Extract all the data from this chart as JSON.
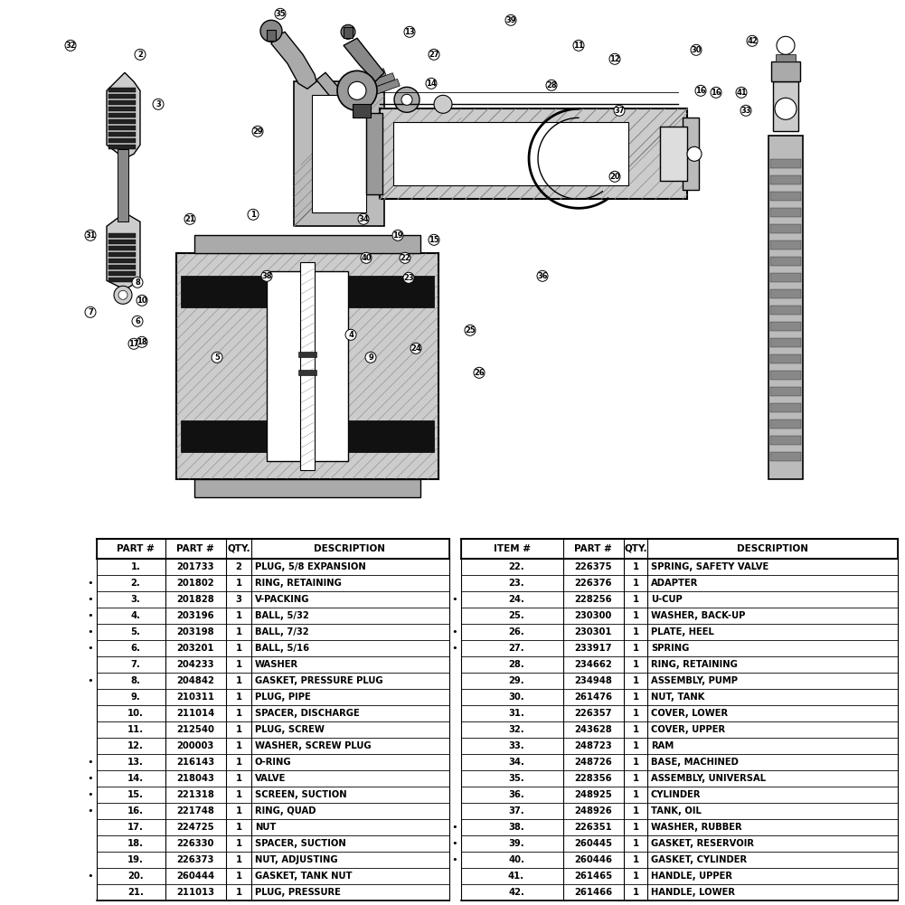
{
  "bg_color": "#ffffff",
  "table_left": {
    "headers": [
      "PART #",
      "PART #",
      "QTY.",
      "DESCRIPTION"
    ],
    "rows": [
      {
        "item": "1.",
        "part": "201733",
        "qty": "2",
        "desc": "PLUG, 5/8 EXPANSION",
        "bullet": false
      },
      {
        "item": "2.",
        "part": "201802",
        "qty": "1",
        "desc": "RING, RETAINING",
        "bullet": true
      },
      {
        "item": "3.",
        "part": "201828",
        "qty": "3",
        "desc": "V-PACKING",
        "bullet": true
      },
      {
        "item": "4.",
        "part": "203196",
        "qty": "1",
        "desc": "BALL, 5/32",
        "bullet": true
      },
      {
        "item": "5.",
        "part": "203198",
        "qty": "1",
        "desc": "BALL, 7/32",
        "bullet": true
      },
      {
        "item": "6.",
        "part": "203201",
        "qty": "1",
        "desc": "BALL, 5/16",
        "bullet": true
      },
      {
        "item": "7.",
        "part": "204233",
        "qty": "1",
        "desc": "WASHER",
        "bullet": false
      },
      {
        "item": "8.",
        "part": "204842",
        "qty": "1",
        "desc": "GASKET, PRESSURE PLUG",
        "bullet": true
      },
      {
        "item": "9.",
        "part": "210311",
        "qty": "1",
        "desc": "PLUG, PIPE",
        "bullet": false
      },
      {
        "item": "10.",
        "part": "211014",
        "qty": "1",
        "desc": "SPACER, DISCHARGE",
        "bullet": false
      },
      {
        "item": "11.",
        "part": "212540",
        "qty": "1",
        "desc": "PLUG, SCREW",
        "bullet": false
      },
      {
        "item": "12.",
        "part": "200003",
        "qty": "1",
        "desc": "WASHER, SCREW PLUG",
        "bullet": false
      },
      {
        "item": "13.",
        "part": "216143",
        "qty": "1",
        "desc": "O-RING",
        "bullet": true
      },
      {
        "item": "14.",
        "part": "218043",
        "qty": "1",
        "desc": "VALVE",
        "bullet": true
      },
      {
        "item": "15.",
        "part": "221318",
        "qty": "1",
        "desc": "SCREEN, SUCTION",
        "bullet": true
      },
      {
        "item": "16.",
        "part": "221748",
        "qty": "1",
        "desc": "RING, QUAD",
        "bullet": true
      },
      {
        "item": "17.",
        "part": "224725",
        "qty": "1",
        "desc": "NUT",
        "bullet": false
      },
      {
        "item": "18.",
        "part": "226330",
        "qty": "1",
        "desc": "SPACER, SUCTION",
        "bullet": false
      },
      {
        "item": "19.",
        "part": "226373",
        "qty": "1",
        "desc": "NUT, ADJUSTING",
        "bullet": false
      },
      {
        "item": "20.",
        "part": "260444",
        "qty": "1",
        "desc": "GASKET, TANK NUT",
        "bullet": true
      },
      {
        "item": "21.",
        "part": "211013",
        "qty": "1",
        "desc": "PLUG, PRESSURE",
        "bullet": false
      }
    ]
  },
  "table_right": {
    "headers": [
      "ITEM #",
      "PART #",
      "QTY.",
      "DESCRIPTION"
    ],
    "rows": [
      {
        "item": "22.",
        "part": "226375",
        "qty": "1",
        "desc": "SPRING, SAFETY VALVE",
        "bullet": false
      },
      {
        "item": "23.",
        "part": "226376",
        "qty": "1",
        "desc": "ADAPTER",
        "bullet": false
      },
      {
        "item": "24.",
        "part": "228256",
        "qty": "1",
        "desc": "U-CUP",
        "bullet": true
      },
      {
        "item": "25.",
        "part": "230300",
        "qty": "1",
        "desc": "WASHER, BACK-UP",
        "bullet": false
      },
      {
        "item": "26.",
        "part": "230301",
        "qty": "1",
        "desc": "PLATE, HEEL",
        "bullet": true
      },
      {
        "item": "27.",
        "part": "233917",
        "qty": "1",
        "desc": "SPRING",
        "bullet": true
      },
      {
        "item": "28.",
        "part": "234662",
        "qty": "1",
        "desc": "RING, RETAINING",
        "bullet": false
      },
      {
        "item": "29.",
        "part": "234948",
        "qty": "1",
        "desc": "ASSEMBLY, PUMP",
        "bullet": false
      },
      {
        "item": "30.",
        "part": "261476",
        "qty": "1",
        "desc": "NUT, TANK",
        "bullet": false
      },
      {
        "item": "31.",
        "part": "226357",
        "qty": "1",
        "desc": "COVER, LOWER",
        "bullet": false
      },
      {
        "item": "32.",
        "part": "243628",
        "qty": "1",
        "desc": "COVER, UPPER",
        "bullet": false
      },
      {
        "item": "33.",
        "part": "248723",
        "qty": "1",
        "desc": "RAM",
        "bullet": false
      },
      {
        "item": "34.",
        "part": "248726",
        "qty": "1",
        "desc": "BASE, MACHINED",
        "bullet": false
      },
      {
        "item": "35.",
        "part": "228356",
        "qty": "1",
        "desc": "ASSEMBLY, UNIVERSAL",
        "bullet": false
      },
      {
        "item": "36.",
        "part": "248925",
        "qty": "1",
        "desc": "CYLINDER",
        "bullet": false
      },
      {
        "item": "37.",
        "part": "248926",
        "qty": "1",
        "desc": "TANK, OIL",
        "bullet": false
      },
      {
        "item": "38.",
        "part": "226351",
        "qty": "1",
        "desc": "WASHER, RUBBER",
        "bullet": true
      },
      {
        "item": "39.",
        "part": "260445",
        "qty": "1",
        "desc": "GASKET, RESERVOIR",
        "bullet": true
      },
      {
        "item": "40.",
        "part": "260446",
        "qty": "1",
        "desc": "GASKET, CYLINDER",
        "bullet": true
      },
      {
        "item": "41.",
        "part": "261465",
        "qty": "1",
        "desc": "HANDLE, UPPER",
        "bullet": false
      },
      {
        "item": "42.",
        "part": "261466",
        "qty": "1",
        "desc": "HANDLE, LOWER",
        "bullet": false
      }
    ]
  },
  "diagram": {
    "callout_r": 0.012,
    "line_color": "#000000",
    "hatch_color": "#555555",
    "fill_gray": "#cccccc",
    "fill_dgray": "#888888",
    "fill_black": "#111111"
  }
}
